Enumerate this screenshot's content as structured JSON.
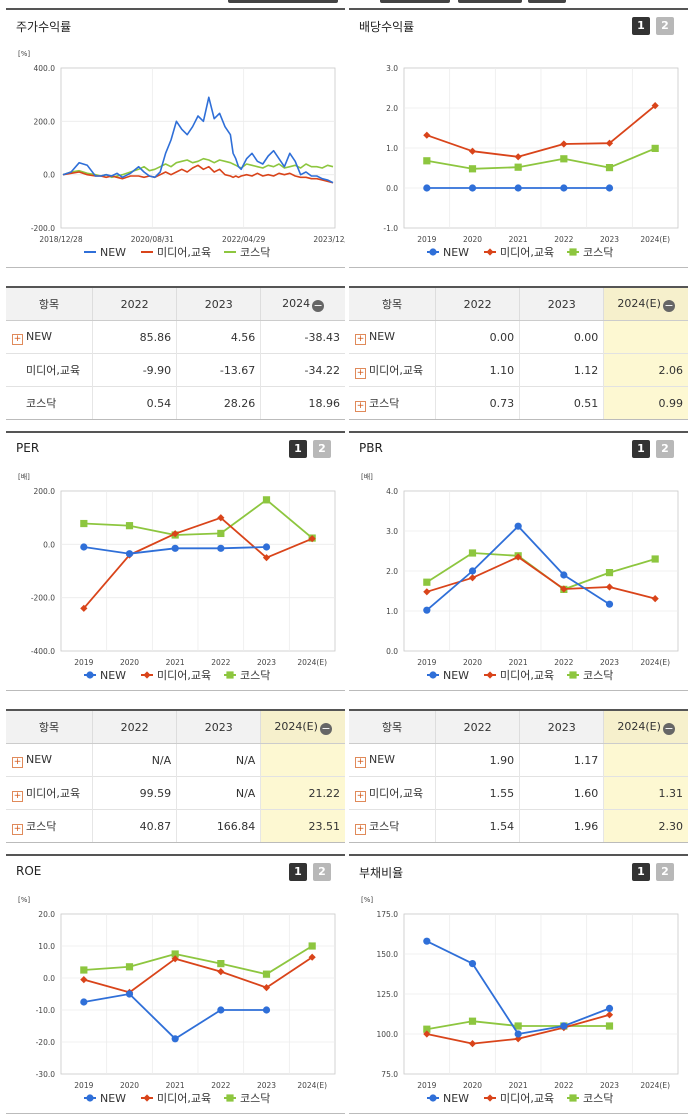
{
  "legend_names": [
    "NEW",
    "미디어,교육",
    "코스닥"
  ],
  "colors": {
    "new": "#2f6fd8",
    "media": "#d9441a",
    "kosdaq": "#8dc63f"
  },
  "buttons": {
    "b1": "1",
    "b2": "2"
  },
  "panels": {
    "price": {
      "title": "주가수익률"
    },
    "div": {
      "title": "배당수익률"
    },
    "per": {
      "title": "PER"
    },
    "pbr": {
      "title": "PBR"
    },
    "roe": {
      "title": "ROE"
    },
    "debt": {
      "title": "부채비율"
    }
  },
  "tables": {
    "price": {
      "headers": [
        "항목",
        "2022",
        "2023",
        "2024"
      ],
      "rows": [
        {
          "name": "NEW",
          "plus": true,
          "values": [
            "85.86",
            "4.56",
            "-38.43"
          ]
        },
        {
          "name": "미디어,교육",
          "plus": false,
          "values": [
            "-9.90",
            "-13.67",
            "-34.22"
          ]
        },
        {
          "name": "코스닥",
          "plus": false,
          "values": [
            "0.54",
            "28.26",
            "18.96"
          ]
        }
      ]
    },
    "div": {
      "headers": [
        "항목",
        "2022",
        "2023",
        "2024(E)"
      ],
      "rows": [
        {
          "name": "NEW",
          "plus": true,
          "values": [
            "0.00",
            "0.00",
            ""
          ]
        },
        {
          "name": "미디어,교육",
          "plus": true,
          "values": [
            "1.10",
            "1.12",
            "2.06"
          ]
        },
        {
          "name": "코스닥",
          "plus": true,
          "values": [
            "0.73",
            "0.51",
            "0.99"
          ]
        }
      ]
    },
    "per": {
      "headers": [
        "항목",
        "2022",
        "2023",
        "2024(E)"
      ],
      "rows": [
        {
          "name": "NEW",
          "plus": true,
          "values": [
            "N/A",
            "N/A",
            ""
          ]
        },
        {
          "name": "미디어,교육",
          "plus": true,
          "values": [
            "99.59",
            "N/A",
            "21.22"
          ]
        },
        {
          "name": "코스닥",
          "plus": true,
          "values": [
            "40.87",
            "166.84",
            "23.51"
          ]
        }
      ]
    },
    "pbr": {
      "headers": [
        "항목",
        "2022",
        "2023",
        "2024(E)"
      ],
      "rows": [
        {
          "name": "NEW",
          "plus": true,
          "values": [
            "1.90",
            "1.17",
            ""
          ]
        },
        {
          "name": "미디어,교육",
          "plus": true,
          "values": [
            "1.55",
            "1.60",
            "1.31"
          ]
        },
        {
          "name": "코스닥",
          "plus": true,
          "values": [
            "1.54",
            "1.96",
            "2.30"
          ]
        }
      ]
    }
  },
  "chart_data": [
    {
      "id": "price",
      "type": "line",
      "title": "주가수익률",
      "unit": "[%]",
      "ylim": [
        -200,
        400
      ],
      "yticks": [
        "400.0",
        "200.0",
        "0.0",
        "-200.0"
      ],
      "xticks": [
        "2018/12/28",
        "2020/08/31",
        "2022/04/29",
        "2023/12/28"
      ],
      "x": [
        0,
        3,
        6,
        9,
        12,
        14,
        16,
        18,
        20,
        22,
        25,
        28,
        30,
        32,
        34,
        36,
        38,
        40,
        42,
        44,
        46,
        48,
        50,
        52,
        54,
        56,
        58,
        60,
        62,
        63,
        64,
        65,
        66,
        68,
        70,
        72,
        74,
        76,
        78,
        80,
        82,
        84,
        86,
        88,
        90,
        92,
        94,
        96,
        98,
        100
      ],
      "series": [
        {
          "name": "NEW",
          "values": [
            0,
            10,
            45,
            35,
            -5,
            -5,
            0,
            -5,
            5,
            -10,
            5,
            30,
            10,
            -5,
            -10,
            10,
            80,
            130,
            200,
            170,
            150,
            180,
            220,
            200,
            290,
            210,
            230,
            180,
            150,
            80,
            60,
            30,
            20,
            60,
            80,
            50,
            40,
            70,
            90,
            60,
            30,
            80,
            50,
            0,
            10,
            -5,
            -5,
            -15,
            -20,
            -30
          ]
        },
        {
          "name": "미디어,교육",
          "values": [
            0,
            5,
            10,
            0,
            -5,
            -5,
            -10,
            -5,
            -10,
            -15,
            -5,
            -5,
            -10,
            -5,
            -10,
            0,
            10,
            0,
            10,
            20,
            10,
            25,
            35,
            20,
            30,
            10,
            20,
            0,
            -5,
            -10,
            -5,
            -10,
            -5,
            0,
            -5,
            5,
            -5,
            0,
            -5,
            5,
            0,
            5,
            -5,
            -10,
            -10,
            -15,
            -15,
            -20,
            -25,
            -30
          ]
        },
        {
          "name": "코스닥",
          "values": [
            0,
            10,
            15,
            5,
            0,
            -5,
            0,
            -10,
            -5,
            0,
            10,
            20,
            30,
            15,
            20,
            30,
            40,
            30,
            45,
            50,
            55,
            45,
            50,
            60,
            55,
            45,
            55,
            50,
            45,
            40,
            35,
            30,
            25,
            40,
            35,
            30,
            25,
            35,
            30,
            40,
            25,
            30,
            35,
            25,
            40,
            30,
            30,
            25,
            35,
            30
          ]
        }
      ]
    },
    {
      "id": "div",
      "type": "line",
      "title": "배당수익률",
      "unit": "",
      "ylim": [
        -1,
        3
      ],
      "yticks": [
        "3.0",
        "2.0",
        "1.0",
        "0.0",
        "-1.0"
      ],
      "categories": [
        "2019",
        "2020",
        "2021",
        "2022",
        "2023",
        "2024(E)"
      ],
      "series": [
        {
          "name": "NEW",
          "values": [
            0.0,
            0.0,
            0.0,
            0.0,
            0.0,
            null
          ]
        },
        {
          "name": "미디어,교육",
          "values": [
            1.32,
            0.92,
            0.78,
            1.1,
            1.12,
            2.06
          ]
        },
        {
          "name": "코스닥",
          "values": [
            0.68,
            0.48,
            0.52,
            0.73,
            0.51,
            0.99
          ]
        }
      ]
    },
    {
      "id": "per",
      "type": "line",
      "title": "PER",
      "unit": "[배]",
      "ylim": [
        -400,
        200
      ],
      "yticks": [
        "200.0",
        "0.0",
        "-200.0",
        "-400.0"
      ],
      "categories": [
        "2019",
        "2020",
        "2021",
        "2022",
        "2023",
        "2024(E)"
      ],
      "series": [
        {
          "name": "NEW",
          "values": [
            -10,
            -35,
            -15,
            -15,
            -10,
            null
          ]
        },
        {
          "name": "미디어,교육",
          "values": [
            -240,
            -40,
            40,
            99.59,
            -50,
            21.22
          ]
        },
        {
          "name": "코스닥",
          "values": [
            78,
            70,
            35,
            40.87,
            166.84,
            23.51
          ]
        }
      ]
    },
    {
      "id": "pbr",
      "type": "line",
      "title": "PBR",
      "unit": "[배]",
      "ylim": [
        0,
        4
      ],
      "yticks": [
        "4.0",
        "3.0",
        "2.0",
        "1.0",
        "0.0"
      ],
      "categories": [
        "2019",
        "2020",
        "2021",
        "2022",
        "2023",
        "2024(E)"
      ],
      "series": [
        {
          "name": "NEW",
          "values": [
            1.02,
            2.0,
            3.12,
            1.9,
            1.17,
            null
          ]
        },
        {
          "name": "미디어,교육",
          "values": [
            1.48,
            1.83,
            2.35,
            1.55,
            1.6,
            1.31
          ]
        },
        {
          "name": "코스닥",
          "values": [
            1.72,
            2.45,
            2.38,
            1.54,
            1.96,
            2.3
          ]
        }
      ]
    },
    {
      "id": "roe",
      "type": "line",
      "title": "ROE",
      "unit": "[%]",
      "ylim": [
        -30,
        20
      ],
      "yticks": [
        "20.0",
        "10.0",
        "0.0",
        "-10.0",
        "-20.0",
        "-30.0"
      ],
      "categories": [
        "2019",
        "2020",
        "2021",
        "2022",
        "2023",
        "2024(E)"
      ],
      "series": [
        {
          "name": "NEW",
          "values": [
            -7.5,
            -5,
            -19,
            -10,
            -10,
            null
          ]
        },
        {
          "name": "미디어,교육",
          "values": [
            -0.5,
            -4.5,
            6,
            2,
            -3,
            6.5
          ]
        },
        {
          "name": "코스닥",
          "values": [
            2.5,
            3.5,
            7.5,
            4.5,
            1.2,
            10
          ]
        }
      ]
    },
    {
      "id": "debt",
      "type": "line",
      "title": "부채비율",
      "unit": "[%]",
      "ylim": [
        75,
        175
      ],
      "yticks": [
        "175.0",
        "150.0",
        "125.0",
        "100.0",
        "75.0"
      ],
      "categories": [
        "2019",
        "2020",
        "2021",
        "2022",
        "2023",
        "2024(E)"
      ],
      "series": [
        {
          "name": "NEW",
          "values": [
            158,
            144,
            100,
            105,
            116,
            null
          ]
        },
        {
          "name": "미디어,교육",
          "values": [
            100,
            94,
            97,
            104,
            112,
            null
          ]
        },
        {
          "name": "코스닥",
          "values": [
            103,
            108,
            105,
            105,
            105,
            null
          ]
        }
      ]
    }
  ]
}
